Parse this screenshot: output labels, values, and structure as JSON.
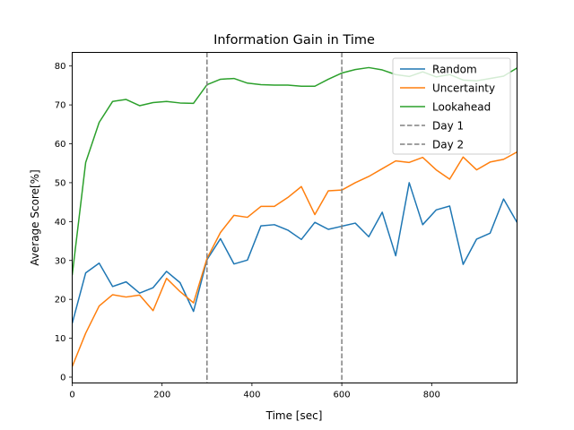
{
  "chart_data": {
    "type": "line",
    "title": "Information Gain in Time",
    "xlabel": "Time [sec]",
    "ylabel": "Average Score[%]",
    "xlim": [
      0,
      990
    ],
    "ylim": [
      -1.5,
      83.5
    ],
    "x_ticks": [
      0,
      200,
      400,
      600,
      800
    ],
    "y_ticks": [
      0,
      10,
      20,
      30,
      40,
      50,
      60,
      70,
      80
    ],
    "grid": false,
    "legend_position": "top-right",
    "x": [
      0,
      30,
      60,
      90,
      120,
      150,
      180,
      210,
      240,
      270,
      300,
      330,
      360,
      390,
      420,
      450,
      480,
      510,
      540,
      570,
      600,
      630,
      660,
      690,
      720,
      750,
      780,
      810,
      840,
      870,
      900,
      930,
      960,
      990
    ],
    "series": [
      {
        "name": "Random",
        "color": "#1f77b4",
        "values": [
          13.8,
          26.8,
          29.3,
          23.3,
          24.5,
          21.6,
          23.0,
          27.2,
          24.3,
          16.9,
          30.2,
          35.6,
          29.1,
          30.1,
          38.9,
          39.2,
          37.8,
          35.4,
          39.8,
          38.0,
          38.8,
          39.6,
          36.1,
          42.4,
          31.2,
          50.0,
          39.2,
          43.0,
          44.0,
          29.0,
          35.5,
          37.0,
          45.8,
          39.8
        ]
      },
      {
        "name": "Uncertainty",
        "color": "#ff7f0e",
        "values": [
          2.7,
          11.3,
          18.3,
          21.2,
          20.6,
          21.1,
          17.1,
          25.4,
          22.0,
          19.1,
          30.5,
          37.2,
          41.6,
          41.1,
          43.9,
          43.9,
          46.2,
          49.0,
          41.8,
          47.9,
          48.1,
          50.0,
          51.6,
          53.6,
          55.6,
          55.2,
          56.5,
          53.3,
          50.9,
          56.6,
          53.3,
          55.3,
          56.0,
          57.9
        ]
      },
      {
        "name": "Lookahead",
        "color": "#2ca02c",
        "values": [
          26.2,
          55.2,
          65.5,
          70.9,
          71.4,
          69.8,
          70.6,
          70.9,
          70.5,
          70.4,
          75.2,
          76.6,
          76.8,
          75.6,
          75.2,
          75.1,
          75.1,
          74.8,
          74.8,
          76.6,
          78.2,
          79.1,
          79.6,
          79.0,
          77.8,
          77.3,
          78.5,
          77.2,
          77.8,
          76.4,
          76.2,
          76.8,
          77.4,
          79.5
        ]
      },
      {
        "name": "Day 1",
        "color": "#808080",
        "style": "dashed",
        "vertical_line_x": 300
      },
      {
        "name": "Day 2",
        "color": "#808080",
        "style": "dashed",
        "vertical_line_x": 600
      }
    ]
  }
}
